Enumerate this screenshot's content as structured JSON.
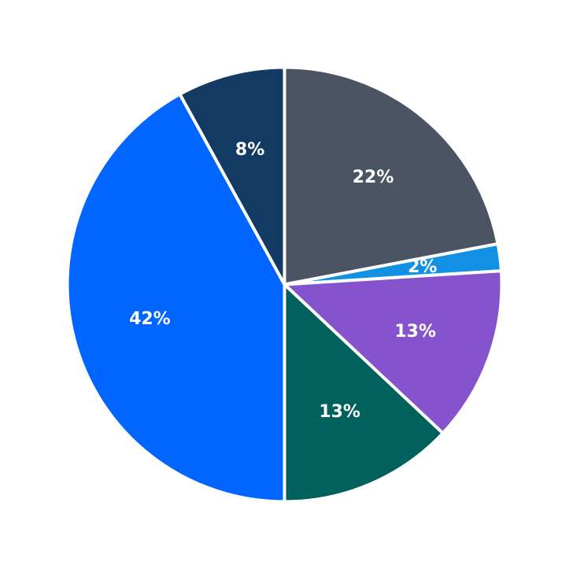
{
  "chart_data": {
    "type": "pie",
    "title": "",
    "start_angle": "top",
    "direction": "clockwise",
    "slices": [
      {
        "value": 22,
        "label": "22%",
        "color": "#4a5462"
      },
      {
        "value": 2,
        "label": "2%",
        "color": "#1190e4"
      },
      {
        "value": 13,
        "label": "13%",
        "color": "#8553cc"
      },
      {
        "value": 13,
        "label": "13%",
        "color": "#00615d"
      },
      {
        "value": 42,
        "label": "42%",
        "color": "#0066ff"
      },
      {
        "value": 8,
        "label": "8%",
        "color": "#133a63"
      }
    ]
  }
}
